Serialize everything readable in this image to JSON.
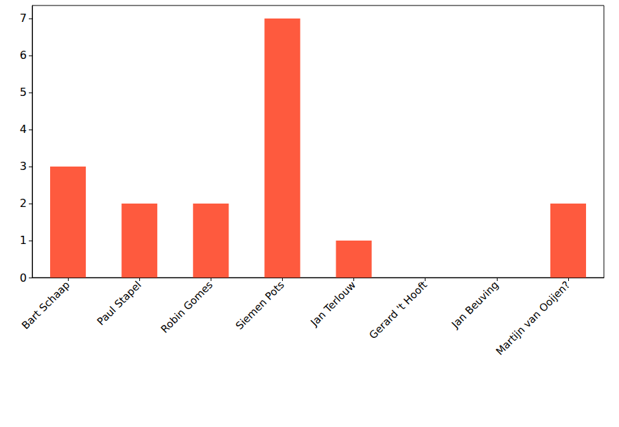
{
  "chart_data": {
    "type": "bar",
    "categories": [
      "Bart Schaap",
      "Paul Stapel",
      "Robin Gomes",
      "Siemen Pots",
      "Jan Terlouw",
      "Gerard 't Hooft",
      "Jan Beuving",
      "Martijn van Ooijen?"
    ],
    "values": [
      3,
      2,
      2,
      7,
      1,
      0,
      0,
      2
    ],
    "color": "#fe5a3e",
    "ylim": [
      0,
      7.35
    ],
    "yticks": [
      0,
      1,
      2,
      3,
      4,
      5,
      6,
      7
    ],
    "grid": false
  }
}
